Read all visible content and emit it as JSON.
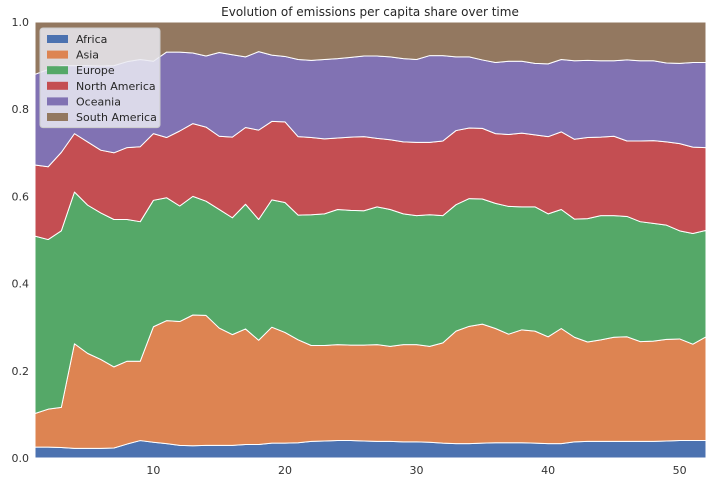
{
  "chart_data": {
    "type": "area",
    "title": "Evolution of emissions per capita share over time",
    "xlabel": "",
    "ylabel": "",
    "xlim": [
      1,
      52
    ],
    "ylim": [
      0,
      1.0
    ],
    "x_ticks": [
      10,
      20,
      30,
      40,
      50
    ],
    "y_ticks": [
      0.0,
      0.2,
      0.4,
      0.6,
      0.8,
      1.0
    ],
    "y_tick_labels": [
      "0.0",
      "0.2",
      "0.4",
      "0.6",
      "0.8",
      "1.0"
    ],
    "grid": true,
    "legend_position": "top-left",
    "stacked": true,
    "x": [
      1,
      2,
      3,
      4,
      5,
      6,
      7,
      8,
      9,
      10,
      11,
      12,
      13,
      14,
      15,
      16,
      17,
      18,
      19,
      20,
      21,
      22,
      23,
      24,
      25,
      26,
      27,
      28,
      29,
      30,
      31,
      32,
      33,
      34,
      35,
      36,
      37,
      38,
      39,
      40,
      41,
      42,
      43,
      44,
      45,
      46,
      47,
      48,
      49,
      50,
      51,
      52
    ],
    "series": [
      {
        "name": "Africa",
        "color": "#4c72b0",
        "values": [
          0.025,
          0.025,
          0.024,
          0.022,
          0.022,
          0.022,
          0.023,
          0.032,
          0.04,
          0.036,
          0.033,
          0.029,
          0.028,
          0.029,
          0.029,
          0.029,
          0.031,
          0.031,
          0.034,
          0.034,
          0.035,
          0.038,
          0.039,
          0.04,
          0.04,
          0.039,
          0.038,
          0.038,
          0.037,
          0.037,
          0.036,
          0.034,
          0.033,
          0.033,
          0.034,
          0.035,
          0.035,
          0.035,
          0.034,
          0.033,
          0.033,
          0.037,
          0.038,
          0.038,
          0.038,
          0.038,
          0.038,
          0.038,
          0.039,
          0.04,
          0.04,
          0.04
        ]
      },
      {
        "name": "Asia",
        "color": "#dd8452",
        "values": [
          0.077,
          0.087,
          0.092,
          0.24,
          0.218,
          0.204,
          0.186,
          0.19,
          0.182,
          0.265,
          0.282,
          0.284,
          0.3,
          0.298,
          0.269,
          0.254,
          0.265,
          0.239,
          0.266,
          0.254,
          0.236,
          0.22,
          0.219,
          0.22,
          0.219,
          0.22,
          0.222,
          0.218,
          0.223,
          0.223,
          0.22,
          0.23,
          0.258,
          0.269,
          0.273,
          0.262,
          0.249,
          0.259,
          0.257,
          0.245,
          0.264,
          0.24,
          0.228,
          0.233,
          0.239,
          0.24,
          0.229,
          0.23,
          0.233,
          0.233,
          0.221,
          0.238
        ]
      },
      {
        "name": "Europe",
        "color": "#55a868",
        "values": [
          0.407,
          0.389,
          0.405,
          0.348,
          0.34,
          0.336,
          0.338,
          0.325,
          0.32,
          0.29,
          0.282,
          0.265,
          0.272,
          0.262,
          0.272,
          0.268,
          0.286,
          0.277,
          0.292,
          0.298,
          0.286,
          0.3,
          0.302,
          0.31,
          0.309,
          0.308,
          0.316,
          0.314,
          0.3,
          0.296,
          0.302,
          0.292,
          0.29,
          0.293,
          0.287,
          0.287,
          0.293,
          0.282,
          0.285,
          0.282,
          0.273,
          0.271,
          0.283,
          0.285,
          0.279,
          0.276,
          0.275,
          0.27,
          0.262,
          0.248,
          0.254,
          0.244
        ]
      },
      {
        "name": "North America",
        "color": "#c44e52",
        "values": [
          0.163,
          0.167,
          0.18,
          0.134,
          0.145,
          0.144,
          0.153,
          0.165,
          0.172,
          0.153,
          0.138,
          0.172,
          0.167,
          0.17,
          0.168,
          0.185,
          0.176,
          0.205,
          0.18,
          0.185,
          0.18,
          0.177,
          0.172,
          0.164,
          0.168,
          0.17,
          0.157,
          0.16,
          0.165,
          0.168,
          0.166,
          0.171,
          0.17,
          0.162,
          0.162,
          0.16,
          0.165,
          0.169,
          0.165,
          0.177,
          0.178,
          0.183,
          0.186,
          0.18,
          0.182,
          0.173,
          0.185,
          0.19,
          0.191,
          0.2,
          0.198,
          0.19
        ]
      },
      {
        "name": "Oceania",
        "color": "#8172b3",
        "values": [
          0.208,
          0.223,
          0.199,
          0.156,
          0.175,
          0.193,
          0.2,
          0.197,
          0.2,
          0.166,
          0.196,
          0.181,
          0.162,
          0.163,
          0.192,
          0.189,
          0.162,
          0.18,
          0.152,
          0.15,
          0.177,
          0.177,
          0.182,
          0.182,
          0.183,
          0.185,
          0.189,
          0.19,
          0.191,
          0.19,
          0.199,
          0.196,
          0.169,
          0.163,
          0.157,
          0.163,
          0.168,
          0.165,
          0.164,
          0.167,
          0.166,
          0.18,
          0.177,
          0.175,
          0.173,
          0.186,
          0.184,
          0.183,
          0.181,
          0.184,
          0.194,
          0.195
        ]
      },
      {
        "name": "South America",
        "color": "#937860",
        "values": [
          0.12,
          0.109,
          0.1,
          0.1,
          0.1,
          0.101,
          0.1,
          0.091,
          0.086,
          0.09,
          0.069,
          0.069,
          0.071,
          0.078,
          0.07,
          0.075,
          0.08,
          0.068,
          0.076,
          0.079,
          0.086,
          0.088,
          0.086,
          0.084,
          0.081,
          0.078,
          0.078,
          0.08,
          0.084,
          0.086,
          0.077,
          0.077,
          0.08,
          0.08,
          0.087,
          0.093,
          0.09,
          0.09,
          0.095,
          0.096,
          0.086,
          0.089,
          0.088,
          0.089,
          0.089,
          0.087,
          0.089,
          0.089,
          0.094,
          0.095,
          0.093,
          0.093
        ]
      }
    ]
  }
}
